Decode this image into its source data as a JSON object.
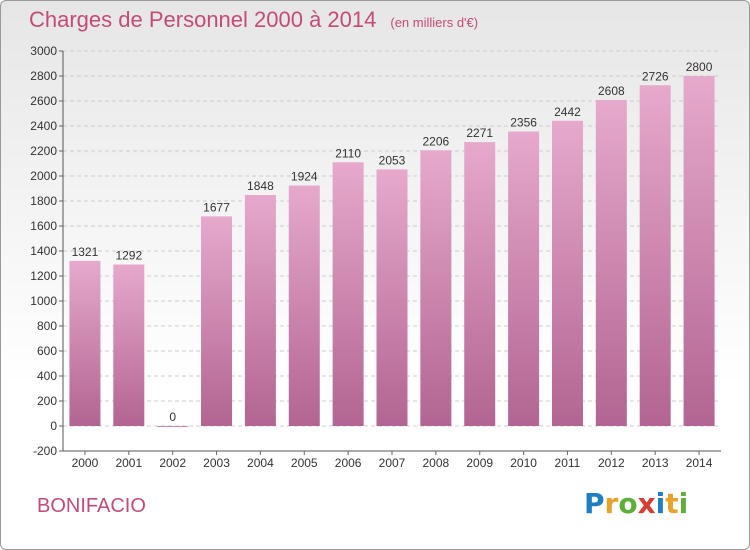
{
  "header": {
    "title": "Charges de Personnel 2000 à 2014",
    "unit_note": "(en milliers d'€)"
  },
  "footer": {
    "location": "BONIFACIO",
    "logo_letters": [
      "P",
      "r",
      "o",
      "x",
      "i",
      "t",
      "i"
    ],
    "logo_colors": [
      "#1f7fc4",
      "#e8a12b",
      "#5fae3a",
      "#d63c2f",
      "#1f7fc4",
      "#e8a12b",
      "#5fae3a"
    ]
  },
  "colors": {
    "accent": "#c44b78",
    "bar_top": "#e6a9cc",
    "bar_bottom": "#b26592",
    "grid": "#cccccc"
  },
  "chart_data": {
    "type": "bar",
    "categories": [
      "2000",
      "2001",
      "2002",
      "2003",
      "2004",
      "2005",
      "2006",
      "2007",
      "2008",
      "2009",
      "2010",
      "2011",
      "2012",
      "2013",
      "2014"
    ],
    "values": [
      1321,
      1292,
      0,
      1677,
      1848,
      1924,
      2110,
      2053,
      2206,
      2271,
      2356,
      2442,
      2608,
      2726,
      2800
    ],
    "data_labels": [
      "1321",
      "1292",
      "0",
      "1677",
      "1848",
      "1924",
      "2110",
      "2053",
      "2206",
      "2271",
      "2356",
      "2442",
      "2608",
      "2726",
      "2800"
    ],
    "yticks": [
      -200,
      0,
      200,
      400,
      600,
      800,
      1000,
      1200,
      1400,
      1600,
      1800,
      2000,
      2200,
      2400,
      2600,
      2800,
      3000
    ],
    "ytick_labels": [
      "-200",
      "0",
      "200",
      "400",
      "600",
      "800",
      "1000",
      "1200",
      "1400",
      "1600",
      "1800",
      "2000",
      "2200",
      "2400",
      "2600",
      "2800",
      "3000"
    ],
    "ylim": [
      -200,
      3000
    ],
    "grid": true,
    "title": "Charges de Personnel 2000 à 2014",
    "xlabel": "",
    "ylabel": ""
  }
}
